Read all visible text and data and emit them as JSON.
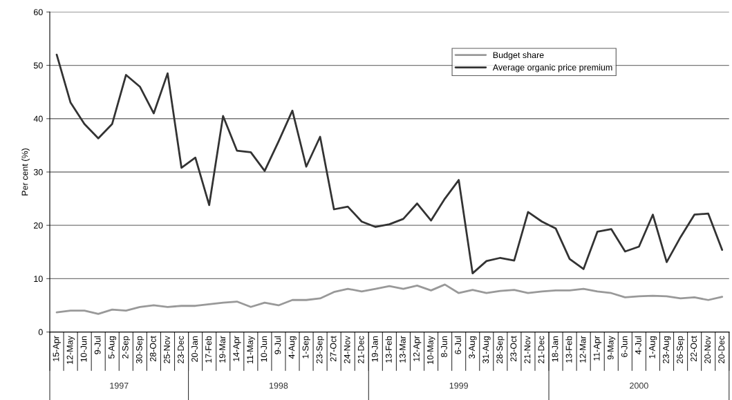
{
  "chart_data": {
    "type": "line",
    "ylabel": "Per cent (%)",
    "categories": [
      "15-Apr",
      "12-May",
      "10-Jun",
      "9-Jul",
      "5-Aug",
      "2-Sep",
      "30-Sep",
      "28-Oct",
      "25-Nov",
      "23-Dec",
      "20-Jan",
      "17-Feb",
      "19-Mar",
      "14-Apr",
      "11-May",
      "10-Jun",
      "9-Jul",
      "4-Aug",
      "1-Sep",
      "23-Sep",
      "27-Oct",
      "24-Nov",
      "21-Dec",
      "19-Jan",
      "13-Feb",
      "13-Mar",
      "12-Apr",
      "10-May",
      "8-Jun",
      "6-Jul",
      "3-Aug",
      "31-Aug",
      "28-Sep",
      "23-Oct",
      "21-Nov",
      "21-Dec",
      "18-Jan",
      "13-Feb",
      "12-Mar",
      "11-Apr",
      "9-May",
      "6-Jun",
      "4-Jul",
      "1-Aug",
      "23-Aug",
      "26-Sep",
      "22-Oct",
      "20-Nov",
      "20-Dec"
    ],
    "series": [
      {
        "name": "Budget share",
        "color": "#999999",
        "values": [
          3.7,
          4.0,
          4.0,
          3.4,
          4.2,
          4.0,
          4.7,
          5.0,
          4.7,
          4.9,
          4.9,
          5.2,
          5.5,
          5.7,
          4.7,
          5.5,
          5.0,
          6.0,
          6.0,
          6.3,
          7.5,
          8.1,
          7.6,
          8.1,
          8.6,
          8.1,
          8.7,
          7.8,
          8.9,
          7.3,
          7.9,
          7.3,
          7.7,
          7.9,
          7.3,
          7.6,
          7.8,
          7.8,
          8.1,
          7.6,
          7.3,
          6.5,
          6.7,
          6.8,
          6.7,
          6.3,
          6.5,
          6.0,
          6.6
        ]
      },
      {
        "name": "Average organic price premium",
        "color": "#333333",
        "values": [
          52,
          43,
          39,
          36.3,
          39,
          48.2,
          46,
          41,
          48.5,
          30.8,
          32.7,
          23.8,
          40.5,
          34,
          33.7,
          30.2,
          35.7,
          41.5,
          31,
          36.6,
          23,
          23.5,
          20.7,
          19.7,
          20.2,
          21.2,
          24.1,
          20.9,
          25,
          28.5,
          11,
          13.3,
          13.9,
          13.4,
          22.5,
          20.7,
          19.4,
          13.7,
          11.8,
          18.8,
          19.3,
          15.1,
          16,
          22,
          13.1,
          17.8,
          22,
          22.2,
          15.4
        ]
      }
    ],
    "annotations": [
      "1997",
      "1998",
      "1999",
      "2000"
    ],
    "ylim": [
      0,
      60
    ],
    "yticks": [
      0,
      10,
      20,
      30,
      40,
      50,
      60
    ],
    "grid": "y",
    "legend": "top right",
    "marker": "none",
    "line_style": "solid"
  }
}
